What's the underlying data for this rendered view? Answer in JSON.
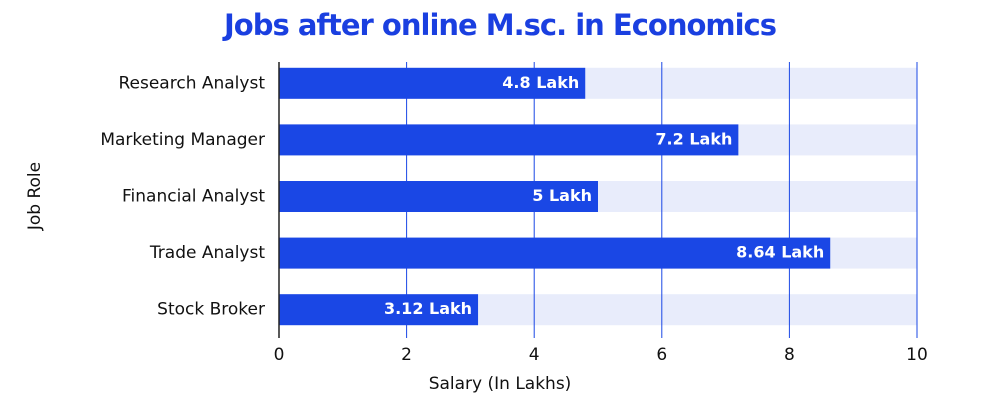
{
  "chart_data": {
    "type": "bar",
    "orientation": "horizontal",
    "title": "Jobs after online M.sc. in Economics",
    "x_label": "Salary (In Lakhs)",
    "y_label": "Job Role",
    "categories": [
      "Research Analyst",
      "Marketing Manager",
      "Financial Analyst",
      "Trade Analyst",
      "Stock Broker"
    ],
    "values": [
      4.8,
      7.2,
      5,
      8.64,
      3.12
    ],
    "value_labels": [
      "4.8 Lakh",
      "7.2 Lakh",
      "5 Lakh",
      "8.64 Lakh",
      "3.12 Lakh"
    ],
    "color": "#1a47e5",
    "xlim": [
      0,
      10
    ],
    "xticks": [
      0,
      2,
      4,
      6,
      8,
      10
    ],
    "grid": true
  }
}
